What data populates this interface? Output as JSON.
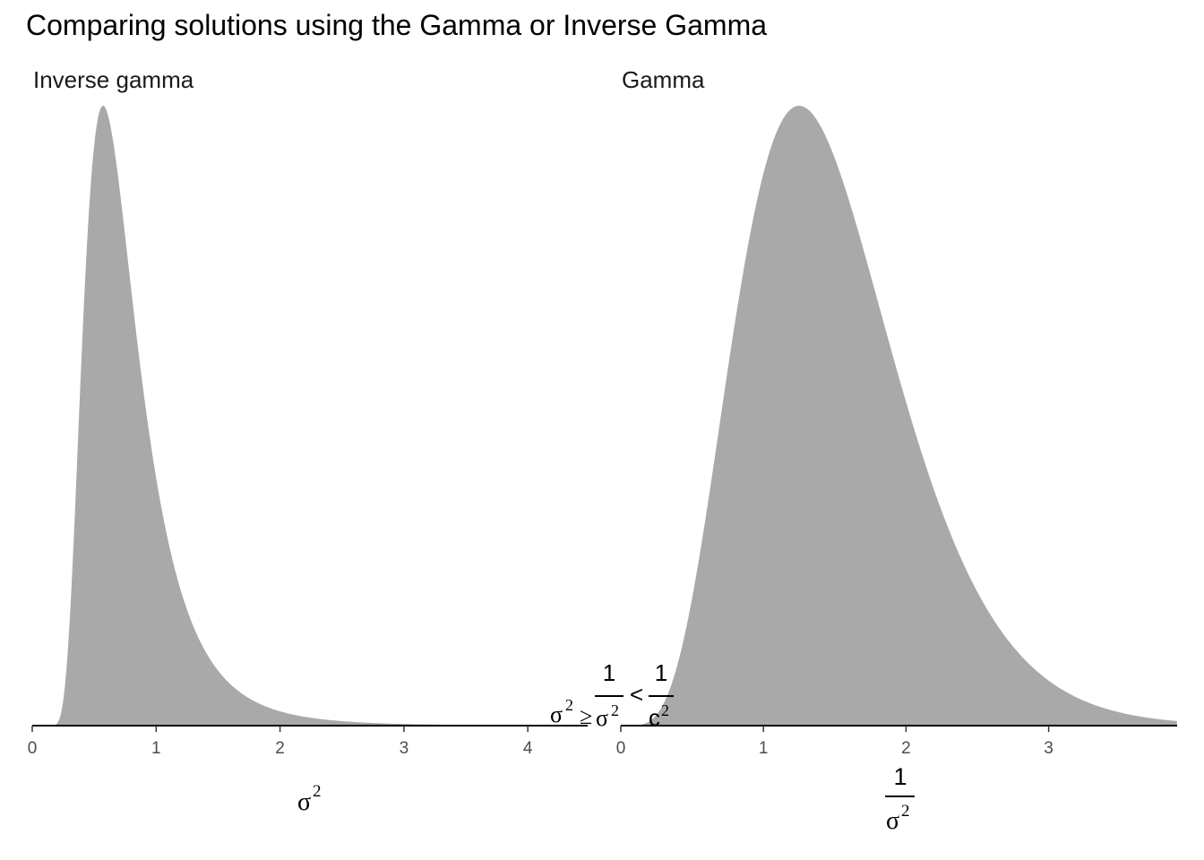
{
  "title": "Comparing solutions using the Gamma or Inverse Gamma",
  "colors": {
    "fill": "#a9a9a9",
    "axis": "#000000",
    "tick_text": "#4d4d4d",
    "background": "#ffffff"
  },
  "chart_data": [
    {
      "type": "area",
      "panel": "Inverse gamma",
      "distribution": "inverse-gamma",
      "shape": 6,
      "rate": 4,
      "xlabel": {
        "base": "σ",
        "sup": "2"
      },
      "ylabel": "",
      "xlim": [
        0,
        4.6
      ],
      "ticks": [
        "0",
        "1",
        "2",
        "3",
        "4"
      ],
      "tick_values": [
        0,
        1,
        2,
        3,
        4
      ],
      "y_axis_shown": false,
      "grid": false
    },
    {
      "type": "area",
      "panel": "Gamma",
      "distribution": "gamma",
      "shape": 6,
      "rate": 4,
      "xlabel": {
        "numerator": "1",
        "denominator_base": "σ",
        "denominator_sup": "2"
      },
      "ylabel": "",
      "xlim": [
        0,
        3.9
      ],
      "ticks": [
        "0",
        "1",
        "2",
        "3"
      ],
      "tick_values": [
        0,
        1,
        2,
        3
      ],
      "y_axis_shown": false,
      "grid": false
    }
  ],
  "annotation": {
    "left_base": "σ",
    "left_sup": "2",
    "ge": "≥",
    "frac1_num": "1",
    "frac1_den_base": "σ",
    "frac1_den_sup": "2",
    "lt": "<",
    "frac2_num": "1",
    "frac2_den_base": "c",
    "frac2_den_sup": "2"
  }
}
